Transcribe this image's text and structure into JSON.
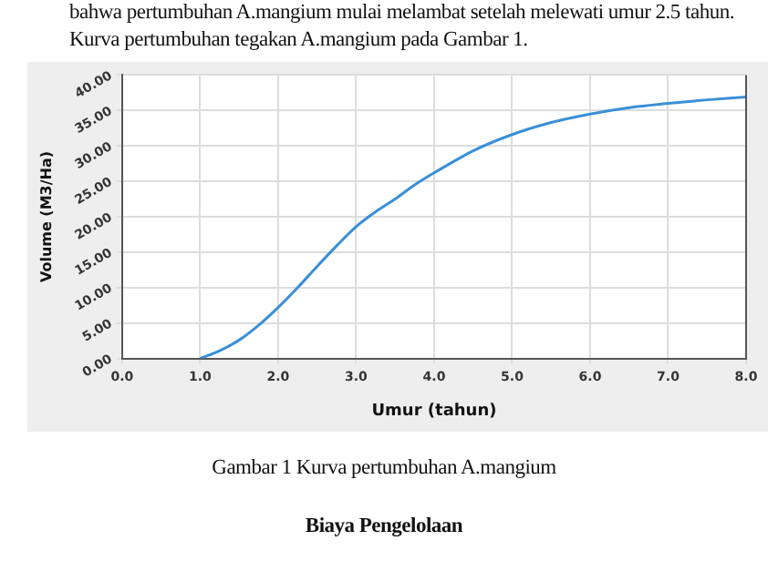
{
  "chart_data": {
    "type": "line",
    "xlabel": "Umur (tahun)",
    "ylabel": "Volume (M3/Ha)",
    "x": [
      1,
      1.25,
      1.5,
      1.75,
      2,
      2.25,
      2.5,
      2.75,
      3,
      3.25,
      3.5,
      3.75,
      4,
      4.5,
      5,
      5.5,
      6,
      6.5,
      7,
      7.5,
      8
    ],
    "series": [
      {
        "color": "#3a8fd8",
        "values": [
          0,
          1.1,
          2.6,
          4.7,
          7.2,
          10,
          13,
          15.9,
          18.6,
          20.7,
          22.5,
          24.5,
          26.2,
          29.3,
          31.6,
          33.3,
          34.5,
          35.4,
          36,
          36.5,
          36.9
        ]
      }
    ],
    "xlim": [
      0,
      8
    ],
    "xticks": [
      {
        "value": 0,
        "label": "0.0"
      },
      {
        "value": 1,
        "label": "1.0"
      },
      {
        "value": 2,
        "label": "2.0"
      },
      {
        "value": 3,
        "label": "3.0"
      },
      {
        "value": 4,
        "label": "4.0"
      },
      {
        "value": 5,
        "label": "5.0"
      },
      {
        "value": 6,
        "label": "6.0"
      },
      {
        "value": 7,
        "label": "7.0"
      },
      {
        "value": 8,
        "label": "8.0"
      }
    ],
    "ylim": [
      0,
      40
    ],
    "yticks": [
      {
        "value": 0,
        "label": "0.00"
      },
      {
        "value": 5,
        "label": "5.00"
      },
      {
        "value": 10,
        "label": "10.00"
      },
      {
        "value": 15,
        "label": "15.00"
      },
      {
        "value": 20,
        "label": "20.00"
      },
      {
        "value": 25,
        "label": "25.00"
      },
      {
        "value": 30,
        "label": "30.00"
      },
      {
        "value": 35,
        "label": "35.00"
      },
      {
        "value": 40,
        "label": "40.00"
      }
    ],
    "grid": true,
    "legend": false,
    "marker": "none",
    "line_style": "solid",
    "annotations": [
      "bahwa pertumbuhan A.mangium mulai melambat setelah melewati umur 2.5 tahun.",
      "Kurva pertumbuhan tegakan A.mangium pada Gambar 1.",
      "Gambar 1  Kurva pertumbuhan A.mangium",
      "Biaya Pengelolaan"
    ]
  }
}
